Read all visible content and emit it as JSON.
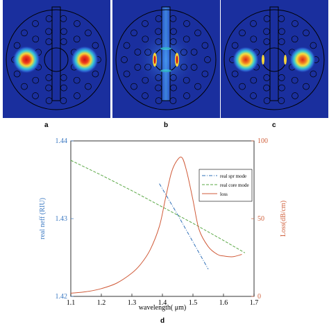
{
  "panels": [
    {
      "label": "a",
      "mode": "core-modes"
    },
    {
      "label": "b",
      "mode": "spr-mode"
    },
    {
      "label": "c",
      "mode": "coupled-mode"
    }
  ],
  "colors": {
    "field_background": "#1a2f9e",
    "hot": "#e0201a",
    "warm": "#f2d23a",
    "cool": "#33c6d8",
    "left_axis": "#3a78c2",
    "right_axis": "#d0603c",
    "spr_line": "#2f6fb8",
    "core_line": "#5aa845",
    "loss_line": "#d05a38"
  },
  "chart_data": {
    "type": "line",
    "panel_label": "d",
    "xlabel": "wavelength( μm)",
    "ylabel_left": "real neff (RIU)",
    "ylabel_right": "Loss(dB/cm)",
    "xlim": [
      1.1,
      1.7
    ],
    "ylim_left": [
      1.42,
      1.44
    ],
    "ylim_right": [
      0,
      100
    ],
    "x_ticks": [
      "1.1",
      "1.2",
      "1.3",
      "1.4",
      "1.5",
      "1.6",
      "1.7"
    ],
    "y_left_ticks": [
      "1.42",
      "1.43",
      "1.44"
    ],
    "y_right_ticks": [
      "0",
      "50",
      "100"
    ],
    "legend_position": "top-right",
    "series": [
      {
        "name": "real spr mode",
        "axis": "left",
        "style": "dashdot",
        "x": [
          1.39,
          1.45,
          1.5,
          1.55
        ],
        "y": [
          1.4345,
          1.4305,
          1.427,
          1.4235
        ]
      },
      {
        "name": "real core mode",
        "axis": "left",
        "style": "dashed",
        "x": [
          1.1,
          1.2,
          1.3,
          1.4,
          1.5,
          1.6,
          1.67
        ],
        "y": [
          1.4375,
          1.4356,
          1.4336,
          1.4315,
          1.4294,
          1.4272,
          1.4256
        ]
      },
      {
        "name": "loss",
        "axis": "right",
        "style": "solid",
        "x": [
          1.1,
          1.15,
          1.2,
          1.25,
          1.3,
          1.33,
          1.36,
          1.39,
          1.41,
          1.43,
          1.45,
          1.465,
          1.48,
          1.5,
          1.52,
          1.55,
          1.58,
          1.6,
          1.63,
          1.66
        ],
        "y": [
          2,
          3,
          5,
          8.5,
          15,
          21,
          30,
          45,
          63,
          80,
          88,
          89,
          80,
          62,
          43,
          32,
          27,
          26,
          25.5,
          27
        ]
      }
    ]
  }
}
